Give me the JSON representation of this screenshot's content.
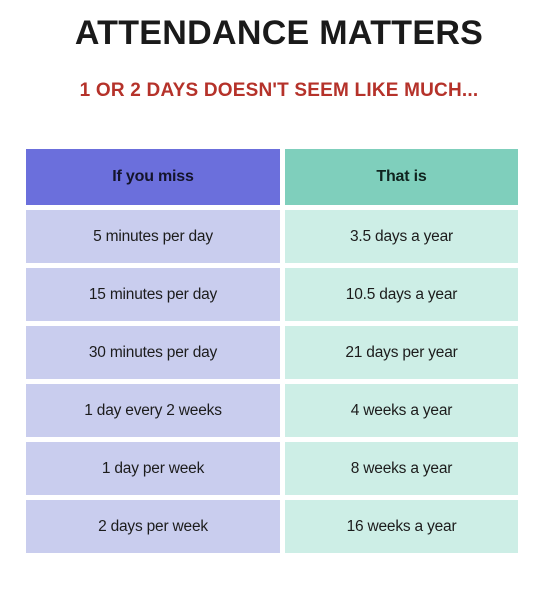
{
  "title": "ATTENDANCE MATTERS",
  "subtitle": "1 OR 2 DAYS DOESN'T SEEM LIKE MUCH...",
  "table": {
    "headers": [
      "If you miss",
      "That is"
    ],
    "rows": [
      [
        "5 minutes per day",
        "3.5 days a year"
      ],
      [
        "15 minutes per day",
        "10.5 days a year"
      ],
      [
        "30 minutes per day",
        "21 days per year"
      ],
      [
        "1 day every 2 weeks",
        "4 weeks a year"
      ],
      [
        "1 day per week",
        "8 weeks a year"
      ],
      [
        "2 days per week",
        "16 weeks a year"
      ]
    ]
  },
  "colors": {
    "subtitle": "#b5322a",
    "header_left": "#6b6fdc",
    "header_right": "#7fcfbc",
    "cell_left": "#c9cdee",
    "cell_right": "#cdeee6"
  }
}
